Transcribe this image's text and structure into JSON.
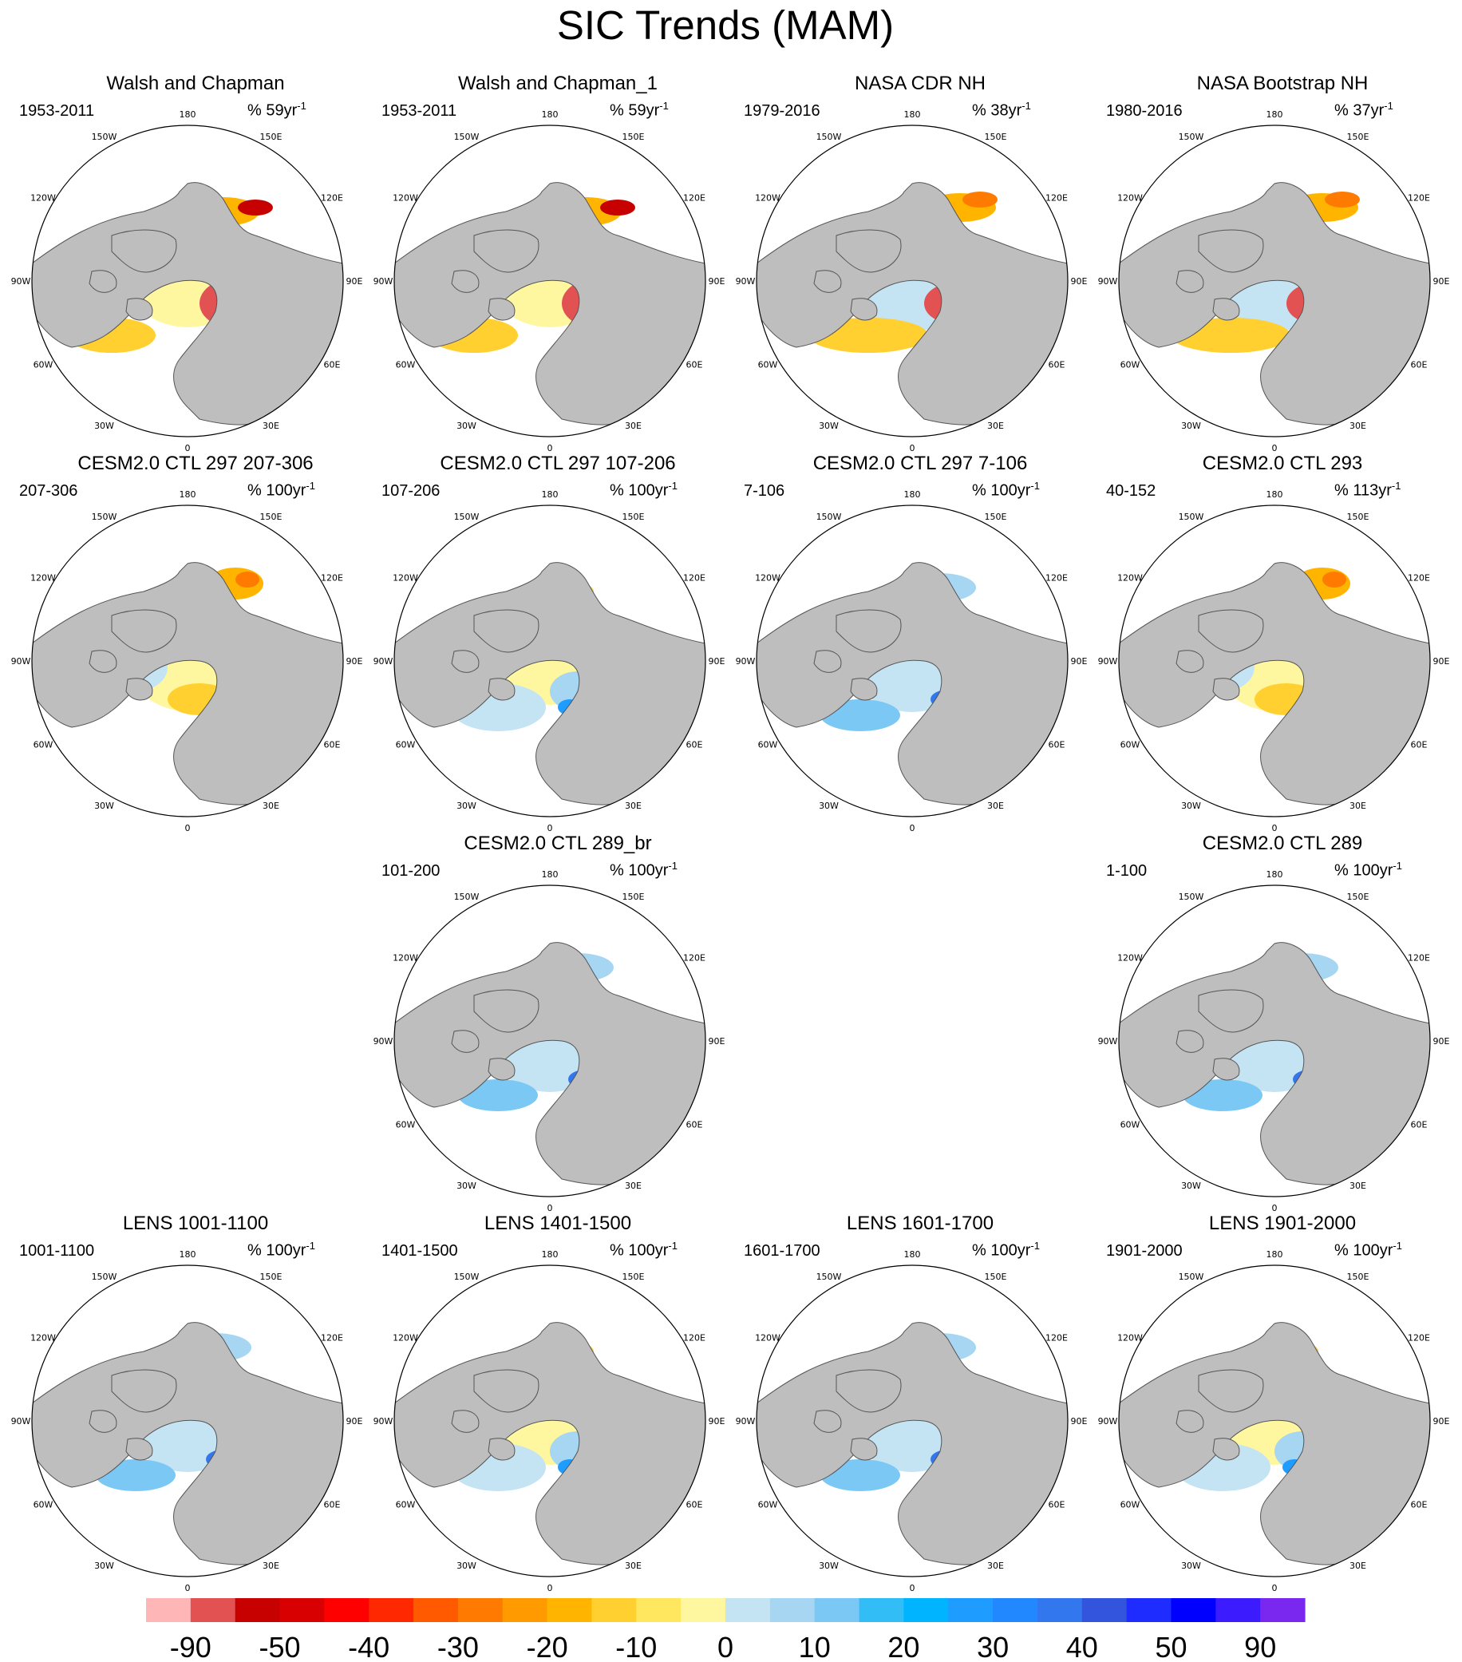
{
  "figure": {
    "title": "SIC Trends (MAM)"
  },
  "colors": {
    "land": "#bebebe",
    "ocean": "#ffffff",
    "coast": "#555555"
  },
  "longitude_labels": [
    "180",
    "150E",
    "120E",
    "90E",
    "60E",
    "30E",
    "0",
    "30W",
    "60W",
    "90W",
    "120W",
    "150W"
  ],
  "panels": [
    {
      "title": "Walsh and Chapman",
      "period": "1953-2011",
      "units": "% 59yr",
      "units_exp": "-1",
      "style": "obs_wc"
    },
    {
      "title": "Walsh and Chapman_1",
      "period": "1953-2011",
      "units": "% 59yr",
      "units_exp": "-1",
      "style": "obs_wc"
    },
    {
      "title": "NASA CDR NH",
      "period": "1979-2016",
      "units": "% 38yr",
      "units_exp": "-1",
      "style": "obs_sat"
    },
    {
      "title": "NASA Bootstrap NH",
      "period": "1980-2016",
      "units": "% 37yr",
      "units_exp": "-1",
      "style": "obs_sat"
    },
    {
      "title": "CESM2.0 CTL 297 207-306",
      "period": "207-306",
      "units": "% 100yr",
      "units_exp": "-1",
      "style": "model_warm"
    },
    {
      "title": "CESM2.0 CTL 297 107-206",
      "period": "107-206",
      "units": "% 100yr",
      "units_exp": "-1",
      "style": "model_mixed"
    },
    {
      "title": "CESM2.0 CTL 297 7-106",
      "period": "7-106",
      "units": "% 100yr",
      "units_exp": "-1",
      "style": "model_cool"
    },
    {
      "title": "CESM2.0 CTL 293",
      "period": "40-152",
      "units": "% 113yr",
      "units_exp": "-1",
      "style": "model_warm"
    },
    {
      "title": "CESM2.0 CTL 289_br",
      "period": "101-200",
      "units": "% 100yr",
      "units_exp": "-1",
      "style": "model_cool"
    },
    {
      "title": "CESM2.0 CTL 289",
      "period": "1-100",
      "units": "% 100yr",
      "units_exp": "-1",
      "style": "model_cool"
    },
    {
      "title": "LENS 1001-1100",
      "period": "1001-1100",
      "units": "% 100yr",
      "units_exp": "-1",
      "style": "model_cool"
    },
    {
      "title": "LENS 1401-1500",
      "period": "1401-1500",
      "units": "% 100yr",
      "units_exp": "-1",
      "style": "model_mixed"
    },
    {
      "title": "LENS 1601-1700",
      "period": "1601-1700",
      "units": "% 100yr",
      "units_exp": "-1",
      "style": "model_cool"
    },
    {
      "title": "LENS 1901-2000",
      "period": "1901-2000",
      "units": "% 100yr",
      "units_exp": "-1",
      "style": "model_mixed"
    }
  ],
  "colorbar": {
    "colors": [
      "#ffb6b6",
      "#e35252",
      "#c70000",
      "#d80000",
      "#ff0000",
      "#ff2800",
      "#ff5a00",
      "#ff7a00",
      "#ff9a00",
      "#ffb400",
      "#ffd030",
      "#ffe860",
      "#fff7a0",
      "#c4e4f4",
      "#a6d6f2",
      "#7cc8f4",
      "#33bdf7",
      "#00b4ff",
      "#1e9cff",
      "#2288ff",
      "#3377ee",
      "#3355dd",
      "#1e2cff",
      "#0000ff",
      "#3c1cff",
      "#7a28f0"
    ],
    "labels": [
      "-90",
      "-50",
      "-40",
      "-30",
      "-20",
      "-10",
      "0",
      "10",
      "20",
      "30",
      "40",
      "50",
      "90"
    ]
  }
}
